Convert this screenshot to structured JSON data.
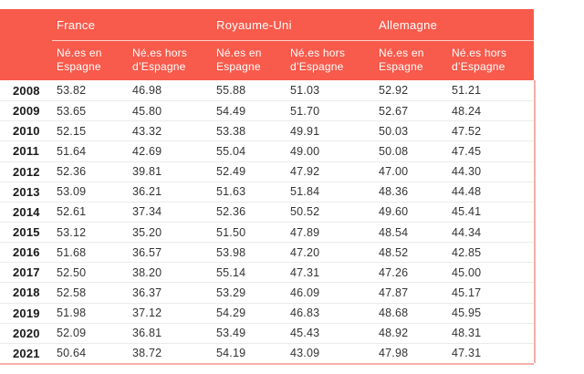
{
  "colors": {
    "header_bg": "#F85A4B",
    "header_text": "#FFFFFF",
    "outer_border": "#F3AFA9",
    "row_divider": "#EBEBEB",
    "year_text": "#1A1A1A",
    "value_text": "#333333"
  },
  "header": {
    "groups": [
      "France",
      "Royaume-Uni",
      "Allemagne"
    ]
  },
  "chart_data": {
    "type": "table",
    "title": "",
    "column_groups": [
      "France",
      "Royaume-Uni",
      "Allemagne"
    ],
    "sub_columns": [
      "Né.es en Espagne",
      "Né.es hors d’Espagne"
    ],
    "categories": [
      "2008",
      "2009",
      "2010",
      "2011",
      "2012",
      "2013",
      "2014",
      "2015",
      "2016",
      "2017",
      "2018",
      "2019",
      "2020",
      "2021"
    ],
    "series": [
      {
        "country": "France",
        "name": "Né.es en Espagne",
        "values": [
          53.82,
          53.65,
          52.15,
          51.64,
          52.36,
          53.09,
          52.61,
          53.12,
          51.68,
          52.5,
          52.58,
          51.98,
          52.09,
          50.64
        ]
      },
      {
        "country": "France",
        "name": "Né.es hors d’Espagne",
        "values": [
          46.98,
          45.8,
          43.32,
          42.69,
          39.81,
          36.21,
          37.34,
          35.2,
          36.57,
          38.2,
          36.37,
          37.12,
          36.81,
          38.72
        ]
      },
      {
        "country": "Royaume-Uni",
        "name": "Né.es en Espagne",
        "values": [
          55.88,
          54.49,
          53.38,
          55.04,
          52.49,
          51.63,
          52.36,
          51.5,
          53.98,
          55.14,
          53.29,
          54.29,
          53.49,
          54.19
        ]
      },
      {
        "country": "Royaume-Uni",
        "name": "Né.es hors d’Espagne",
        "values": [
          51.03,
          51.7,
          49.91,
          49.0,
          47.92,
          51.84,
          50.52,
          47.89,
          47.2,
          47.31,
          46.09,
          46.83,
          45.43,
          43.09
        ]
      },
      {
        "country": "Allemagne",
        "name": "Né.es en Espagne",
        "values": [
          52.92,
          52.67,
          50.03,
          50.08,
          47.0,
          48.36,
          49.6,
          48.54,
          48.52,
          47.26,
          47.87,
          48.68,
          48.92,
          47.98
        ]
      },
      {
        "country": "Allemagne",
        "name": "Né.es hors d’Espagne",
        "values": [
          51.21,
          48.24,
          47.52,
          47.45,
          44.3,
          44.48,
          45.41,
          44.34,
          42.85,
          45.0,
          45.17,
          45.95,
          48.31,
          47.31
        ]
      }
    ]
  }
}
